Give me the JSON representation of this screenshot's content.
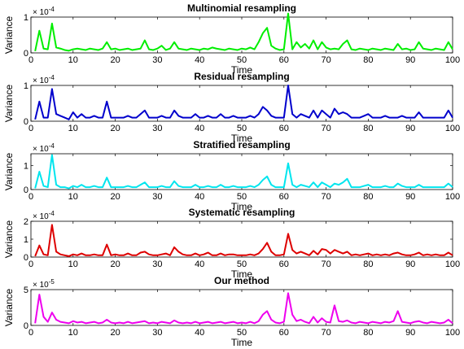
{
  "chart_data": [
    {
      "type": "line",
      "title": "Multinomial resampling",
      "xlabel": "Time",
      "ylabel": "Variance",
      "xlim": [
        0,
        100
      ],
      "ylim": [
        0,
        1
      ],
      "yticks": [
        "0",
        "1"
      ],
      "exponent_base": "× 10",
      "exponent_power": "-4",
      "color": "#00ee00",
      "x": [
        1,
        2,
        3,
        4,
        5,
        6,
        7,
        8,
        9,
        10,
        11,
        12,
        13,
        14,
        15,
        16,
        17,
        18,
        19,
        20,
        21,
        22,
        23,
        24,
        25,
        26,
        27,
        28,
        29,
        30,
        31,
        32,
        33,
        34,
        35,
        36,
        37,
        38,
        39,
        40,
        41,
        42,
        43,
        44,
        45,
        46,
        47,
        48,
        49,
        50,
        51,
        52,
        53,
        54,
        55,
        56,
        57,
        58,
        59,
        60,
        61,
        62,
        63,
        64,
        65,
        66,
        67,
        68,
        69,
        70,
        71,
        72,
        73,
        74,
        75,
        76,
        77,
        78,
        79,
        80,
        81,
        82,
        83,
        84,
        85,
        86,
        87,
        88,
        89,
        90,
        91,
        92,
        93,
        94,
        95,
        96,
        97,
        98,
        99,
        100
      ],
      "values": [
        0.05,
        0.62,
        0.12,
        0.1,
        0.82,
        0.15,
        0.12,
        0.08,
        0.06,
        0.1,
        0.12,
        0.1,
        0.08,
        0.12,
        0.1,
        0.08,
        0.12,
        0.3,
        0.1,
        0.12,
        0.08,
        0.1,
        0.12,
        0.08,
        0.1,
        0.12,
        0.35,
        0.1,
        0.08,
        0.12,
        0.2,
        0.08,
        0.12,
        0.3,
        0.12,
        0.1,
        0.08,
        0.12,
        0.1,
        0.08,
        0.12,
        0.1,
        0.15,
        0.12,
        0.1,
        0.08,
        0.12,
        0.1,
        0.08,
        0.12,
        0.1,
        0.15,
        0.1,
        0.3,
        0.55,
        0.7,
        0.2,
        0.12,
        0.08,
        0.1,
        1.1,
        0.1,
        0.3,
        0.15,
        0.25,
        0.12,
        0.35,
        0.1,
        0.3,
        0.15,
        0.1,
        0.12,
        0.1,
        0.25,
        0.35,
        0.1,
        0.08,
        0.12,
        0.1,
        0.08,
        0.12,
        0.1,
        0.08,
        0.12,
        0.1,
        0.08,
        0.25,
        0.1,
        0.12,
        0.08,
        0.1,
        0.3,
        0.12,
        0.1,
        0.08,
        0.12,
        0.1,
        0.08,
        0.3,
        0.1
      ]
    },
    {
      "type": "line",
      "title": "Residual resampling",
      "xlabel": "Time",
      "ylabel": "Variance",
      "xlim": [
        0,
        100
      ],
      "ylim": [
        0,
        1
      ],
      "yticks": [
        "0",
        "1"
      ],
      "exponent_base": "× 10",
      "exponent_power": "-4",
      "color": "#0000cc",
      "x": [
        1,
        2,
        3,
        4,
        5,
        6,
        7,
        8,
        9,
        10,
        11,
        12,
        13,
        14,
        15,
        16,
        17,
        18,
        19,
        20,
        21,
        22,
        23,
        24,
        25,
        26,
        27,
        28,
        29,
        30,
        31,
        32,
        33,
        34,
        35,
        36,
        37,
        38,
        39,
        40,
        41,
        42,
        43,
        44,
        45,
        46,
        47,
        48,
        49,
        50,
        51,
        52,
        53,
        54,
        55,
        56,
        57,
        58,
        59,
        60,
        61,
        62,
        63,
        64,
        65,
        66,
        67,
        68,
        69,
        70,
        71,
        72,
        73,
        74,
        75,
        76,
        77,
        78,
        79,
        80,
        81,
        82,
        83,
        84,
        85,
        86,
        87,
        88,
        89,
        90,
        91,
        92,
        93,
        94,
        95,
        96,
        97,
        98,
        99,
        100
      ],
      "values": [
        0.05,
        0.55,
        0.1,
        0.1,
        0.9,
        0.2,
        0.15,
        0.1,
        0.05,
        0.25,
        0.1,
        0.2,
        0.1,
        0.1,
        0.15,
        0.1,
        0.1,
        0.55,
        0.1,
        0.1,
        0.1,
        0.1,
        0.15,
        0.1,
        0.1,
        0.2,
        0.3,
        0.1,
        0.1,
        0.1,
        0.15,
        0.1,
        0.1,
        0.3,
        0.15,
        0.1,
        0.1,
        0.1,
        0.2,
        0.1,
        0.1,
        0.15,
        0.1,
        0.1,
        0.2,
        0.1,
        0.1,
        0.15,
        0.1,
        0.1,
        0.1,
        0.15,
        0.1,
        0.2,
        0.4,
        0.3,
        0.15,
        0.1,
        0.1,
        0.1,
        1.0,
        0.2,
        0.1,
        0.2,
        0.15,
        0.1,
        0.3,
        0.1,
        0.3,
        0.2,
        0.1,
        0.35,
        0.2,
        0.25,
        0.2,
        0.1,
        0.1,
        0.1,
        0.15,
        0.2,
        0.1,
        0.1,
        0.1,
        0.15,
        0.1,
        0.1,
        0.1,
        0.15,
        0.1,
        0.1,
        0.1,
        0.25,
        0.1,
        0.1,
        0.1,
        0.1,
        0.1,
        0.1,
        0.3,
        0.1
      ]
    },
    {
      "type": "line",
      "title": "Stratified resampling",
      "xlabel": "Time",
      "ylabel": "Variance",
      "xlim": [
        0,
        100
      ],
      "ylim": [
        0,
        1.5
      ],
      "yticks": [
        "0",
        "1"
      ],
      "exponent_base": "× 10",
      "exponent_power": "-4",
      "color": "#00e5ee",
      "x": [
        1,
        2,
        3,
        4,
        5,
        6,
        7,
        8,
        9,
        10,
        11,
        12,
        13,
        14,
        15,
        16,
        17,
        18,
        19,
        20,
        21,
        22,
        23,
        24,
        25,
        26,
        27,
        28,
        29,
        30,
        31,
        32,
        33,
        34,
        35,
        36,
        37,
        38,
        39,
        40,
        41,
        42,
        43,
        44,
        45,
        46,
        47,
        48,
        49,
        50,
        51,
        52,
        53,
        54,
        55,
        56,
        57,
        58,
        59,
        60,
        61,
        62,
        63,
        64,
        65,
        66,
        67,
        68,
        69,
        70,
        71,
        72,
        73,
        74,
        75,
        76,
        77,
        78,
        79,
        80,
        81,
        82,
        83,
        84,
        85,
        86,
        87,
        88,
        89,
        90,
        91,
        92,
        93,
        94,
        95,
        96,
        97,
        98,
        99,
        100
      ],
      "values": [
        0.05,
        0.75,
        0.15,
        0.1,
        1.45,
        0.2,
        0.1,
        0.1,
        0.05,
        0.15,
        0.1,
        0.2,
        0.1,
        0.1,
        0.15,
        0.1,
        0.1,
        0.5,
        0.1,
        0.1,
        0.1,
        0.1,
        0.15,
        0.1,
        0.1,
        0.2,
        0.3,
        0.1,
        0.1,
        0.1,
        0.15,
        0.1,
        0.1,
        0.35,
        0.15,
        0.1,
        0.1,
        0.1,
        0.2,
        0.1,
        0.1,
        0.15,
        0.1,
        0.1,
        0.2,
        0.1,
        0.1,
        0.15,
        0.1,
        0.1,
        0.1,
        0.15,
        0.1,
        0.2,
        0.4,
        0.55,
        0.2,
        0.1,
        0.1,
        0.1,
        1.1,
        0.2,
        0.1,
        0.2,
        0.15,
        0.1,
        0.3,
        0.1,
        0.3,
        0.2,
        0.1,
        0.25,
        0.2,
        0.3,
        0.45,
        0.1,
        0.1,
        0.1,
        0.15,
        0.2,
        0.1,
        0.1,
        0.1,
        0.15,
        0.1,
        0.1,
        0.25,
        0.15,
        0.1,
        0.1,
        0.1,
        0.2,
        0.1,
        0.1,
        0.1,
        0.1,
        0.1,
        0.1,
        0.25,
        0.1
      ]
    },
    {
      "type": "line",
      "title": "Systematic resampling",
      "xlabel": "Time",
      "ylabel": "Variance",
      "xlim": [
        0,
        100
      ],
      "ylim": [
        0,
        2
      ],
      "yticks": [
        "0",
        "1",
        "2"
      ],
      "exponent_base": "× 10",
      "exponent_power": "-4",
      "color": "#dd0000",
      "x": [
        1,
        2,
        3,
        4,
        5,
        6,
        7,
        8,
        9,
        10,
        11,
        12,
        13,
        14,
        15,
        16,
        17,
        18,
        19,
        20,
        21,
        22,
        23,
        24,
        25,
        26,
        27,
        28,
        29,
        30,
        31,
        32,
        33,
        34,
        35,
        36,
        37,
        38,
        39,
        40,
        41,
        42,
        43,
        44,
        45,
        46,
        47,
        48,
        49,
        50,
        51,
        52,
        53,
        54,
        55,
        56,
        57,
        58,
        59,
        60,
        61,
        62,
        63,
        64,
        65,
        66,
        67,
        68,
        69,
        70,
        71,
        72,
        73,
        74,
        75,
        76,
        77,
        78,
        79,
        80,
        81,
        82,
        83,
        84,
        85,
        86,
        87,
        88,
        89,
        90,
        91,
        92,
        93,
        94,
        95,
        96,
        97,
        98,
        99,
        100
      ],
      "values": [
        0.05,
        0.65,
        0.15,
        0.1,
        1.8,
        0.3,
        0.15,
        0.1,
        0.05,
        0.15,
        0.1,
        0.2,
        0.1,
        0.1,
        0.15,
        0.1,
        0.1,
        0.7,
        0.1,
        0.15,
        0.1,
        0.1,
        0.2,
        0.1,
        0.1,
        0.25,
        0.3,
        0.15,
        0.1,
        0.1,
        0.15,
        0.2,
        0.1,
        0.55,
        0.3,
        0.15,
        0.1,
        0.1,
        0.2,
        0.1,
        0.15,
        0.25,
        0.1,
        0.1,
        0.2,
        0.1,
        0.15,
        0.15,
        0.1,
        0.1,
        0.1,
        0.15,
        0.1,
        0.2,
        0.45,
        0.8,
        0.3,
        0.1,
        0.1,
        0.15,
        1.3,
        0.4,
        0.2,
        0.3,
        0.2,
        0.1,
        0.35,
        0.15,
        0.45,
        0.4,
        0.2,
        0.4,
        0.3,
        0.2,
        0.3,
        0.1,
        0.15,
        0.1,
        0.15,
        0.2,
        0.1,
        0.15,
        0.1,
        0.15,
        0.1,
        0.2,
        0.25,
        0.15,
        0.1,
        0.1,
        0.15,
        0.25,
        0.1,
        0.15,
        0.1,
        0.15,
        0.1,
        0.1,
        0.25,
        0.1
      ]
    },
    {
      "type": "line",
      "title": "Our method",
      "xlabel": "Time",
      "ylabel": "Variance",
      "xlim": [
        0,
        100
      ],
      "ylim": [
        0,
        5
      ],
      "yticks": [
        "0",
        "5"
      ],
      "exponent_base": "× 10",
      "exponent_power": "-5",
      "color": "#ee00ee",
      "x": [
        1,
        2,
        3,
        4,
        5,
        6,
        7,
        8,
        9,
        10,
        11,
        12,
        13,
        14,
        15,
        16,
        17,
        18,
        19,
        20,
        21,
        22,
        23,
        24,
        25,
        26,
        27,
        28,
        29,
        30,
        31,
        32,
        33,
        34,
        35,
        36,
        37,
        38,
        39,
        40,
        41,
        42,
        43,
        44,
        45,
        46,
        47,
        48,
        49,
        50,
        51,
        52,
        53,
        54,
        55,
        56,
        57,
        58,
        59,
        60,
        61,
        62,
        63,
        64,
        65,
        66,
        67,
        68,
        69,
        70,
        71,
        72,
        73,
        74,
        75,
        76,
        77,
        78,
        79,
        80,
        81,
        82,
        83,
        84,
        85,
        86,
        87,
        88,
        89,
        90,
        91,
        92,
        93,
        94,
        95,
        96,
        97,
        98,
        99,
        100
      ],
      "values": [
        0.3,
        4.3,
        1.2,
        0.5,
        1.8,
        0.8,
        0.5,
        0.4,
        0.3,
        0.6,
        0.4,
        0.5,
        0.3,
        0.4,
        0.5,
        0.3,
        0.4,
        0.8,
        0.4,
        0.3,
        0.4,
        0.3,
        0.5,
        0.3,
        0.4,
        0.5,
        0.6,
        0.3,
        0.4,
        0.3,
        0.5,
        0.4,
        0.3,
        0.7,
        0.4,
        0.3,
        0.4,
        0.3,
        0.5,
        0.3,
        0.4,
        0.5,
        0.3,
        0.4,
        0.5,
        0.3,
        0.4,
        0.5,
        0.3,
        0.4,
        0.3,
        0.5,
        0.3,
        0.6,
        1.5,
        2.0,
        0.8,
        0.4,
        0.3,
        0.5,
        4.5,
        1.5,
        0.6,
        0.8,
        0.5,
        0.3,
        1.2,
        0.4,
        1.0,
        0.5,
        0.4,
        2.8,
        0.6,
        0.5,
        0.7,
        0.4,
        0.3,
        0.5,
        0.4,
        0.3,
        0.5,
        0.4,
        0.3,
        0.5,
        0.4,
        0.6,
        2.0,
        0.5,
        0.4,
        0.3,
        0.5,
        0.6,
        0.4,
        0.3,
        0.5,
        0.4,
        0.3,
        0.4,
        0.8,
        0.3
      ]
    }
  ]
}
